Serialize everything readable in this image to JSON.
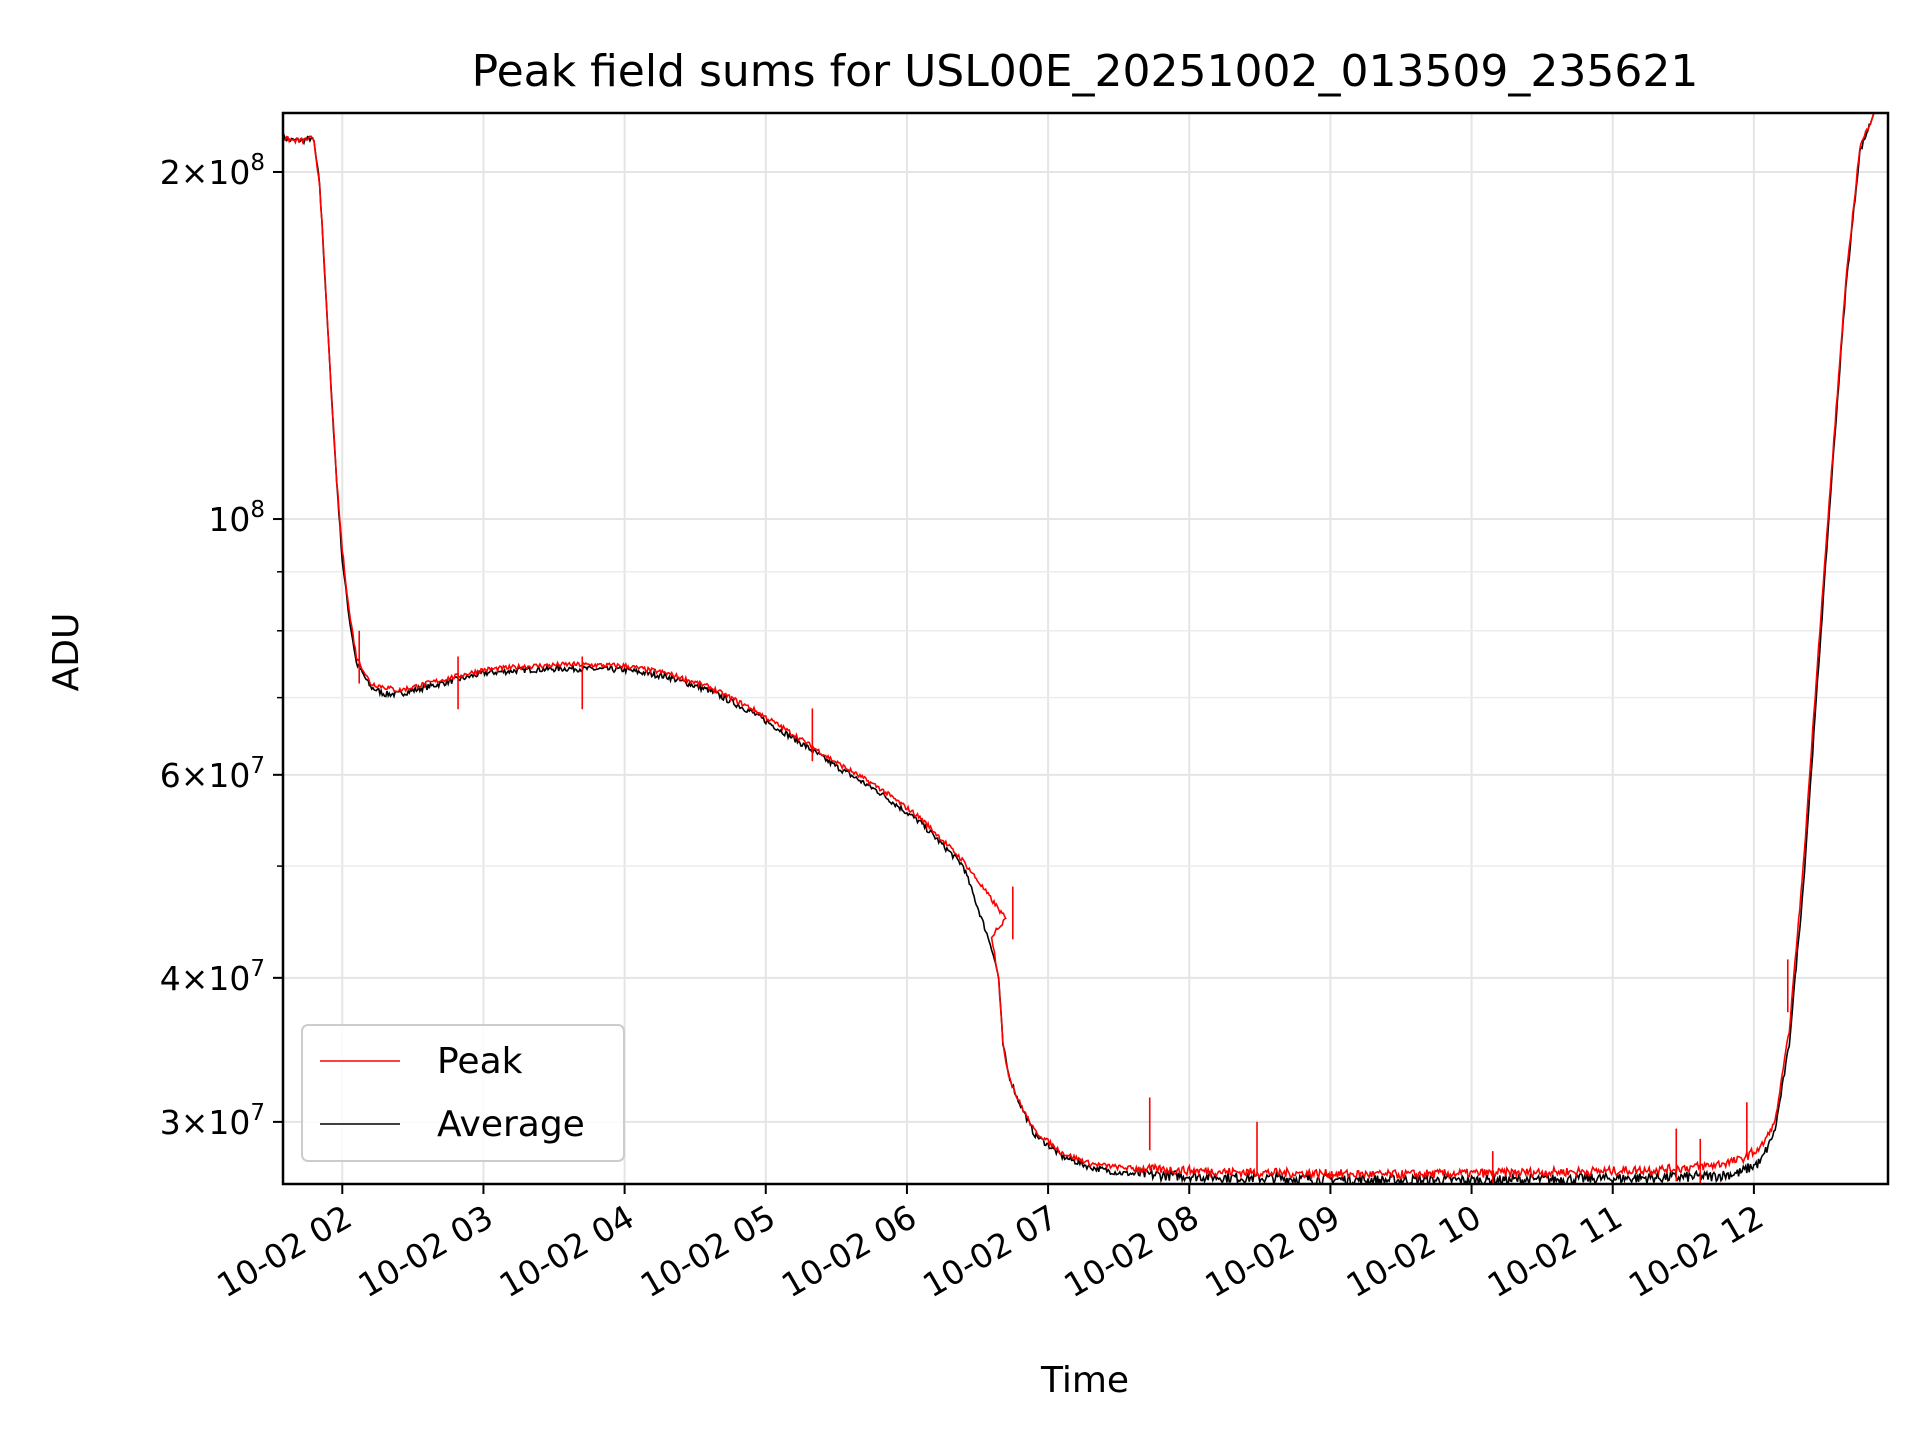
{
  "chart_data": {
    "type": "line",
    "title": "Peak field sums for USL00E_20251002_013509_235621",
    "xlabel": "Time",
    "ylabel": "ADU",
    "yscale": "log",
    "xlim": [
      1.58,
      12.95
    ],
    "ylim": [
      26500000,
      225000000
    ],
    "grid": true,
    "legend_position": "lower-left",
    "x_ticks": [
      {
        "value": 2,
        "label": "10-02 02"
      },
      {
        "value": 3,
        "label": "10-02 03"
      },
      {
        "value": 4,
        "label": "10-02 04"
      },
      {
        "value": 5,
        "label": "10-02 05"
      },
      {
        "value": 6,
        "label": "10-02 06"
      },
      {
        "value": 7,
        "label": "10-02 07"
      },
      {
        "value": 8,
        "label": "10-02 08"
      },
      {
        "value": 9,
        "label": "10-02 09"
      },
      {
        "value": 10,
        "label": "10-02 10"
      },
      {
        "value": 11,
        "label": "10-02 11"
      },
      {
        "value": 12,
        "label": "10-02 12"
      }
    ],
    "y_ticks": [
      {
        "value": 30000000,
        "mant": "3",
        "exp": "7"
      },
      {
        "value": 40000000,
        "mant": "4",
        "exp": "7"
      },
      {
        "value": 60000000,
        "mant": "6",
        "exp": "7"
      },
      {
        "value": 100000000,
        "mant": "",
        "exp": "8"
      },
      {
        "value": 200000000,
        "mant": "2",
        "exp": "8"
      }
    ],
    "y_minor": [
      50000000,
      70000000,
      80000000,
      90000000
    ],
    "series": [
      {
        "name": "Peak",
        "color": "#ff0000",
        "x": [
          1.58,
          1.65,
          1.72,
          1.78,
          1.8,
          1.84,
          1.88,
          1.92,
          1.96,
          2.0,
          2.05,
          2.1,
          2.2,
          2.3,
          2.4,
          2.5,
          2.6,
          2.8,
          3.0,
          3.3,
          3.6,
          4.0,
          4.3,
          4.6,
          4.9,
          5.2,
          5.5,
          5.8,
          6.1,
          6.4,
          6.7,
          6.6,
          6.62,
          6.65,
          6.68,
          6.72,
          6.78,
          6.9,
          7.1,
          7.3,
          7.5,
          7.7,
          7.9,
          8.1,
          8.3,
          8.6,
          9.0,
          9.4,
          9.8,
          10.2,
          10.6,
          11.0,
          11.4,
          11.7,
          11.9,
          12.05,
          12.15,
          12.25,
          12.35,
          12.45,
          12.55,
          12.65,
          12.75,
          12.85
        ],
        "values": [
          214000000,
          213000000,
          213000000,
          214000000,
          212000000,
          195000000,
          160000000,
          130000000,
          108000000,
          94000000,
          83000000,
          76000000,
          72000000,
          71500000,
          71000000,
          71500000,
          72000000,
          73000000,
          74000000,
          74500000,
          74800000,
          74600000,
          73500000,
          71500000,
          68500000,
          65000000,
          61500000,
          58500000,
          55000000,
          50500000,
          45000000,
          43500000,
          42000000,
          40000000,
          35000000,
          33000000,
          31500000,
          29500000,
          28200000,
          27600000,
          27400000,
          27300000,
          27250000,
          27200000,
          27150000,
          27100000,
          27050000,
          27000000,
          27050000,
          27100000,
          27150000,
          27200000,
          27300000,
          27500000,
          27800000,
          28500000,
          30000000,
          36000000,
          50000000,
          75000000,
          110000000,
          160000000,
          210000000,
          225000000
        ],
        "spikes": [
          {
            "x": 2.12,
            "value": 80000000
          },
          {
            "x": 2.82,
            "value": 76000000
          },
          {
            "x": 3.7,
            "value": 76000000
          },
          {
            "x": 5.33,
            "value": 68500000
          },
          {
            "x": 6.75,
            "value": 48000000
          },
          {
            "x": 7.72,
            "value": 31500000
          },
          {
            "x": 8.48,
            "value": 30000000
          },
          {
            "x": 10.15,
            "value": 28300000
          },
          {
            "x": 11.45,
            "value": 29600000
          },
          {
            "x": 11.62,
            "value": 29000000
          },
          {
            "x": 11.95,
            "value": 31200000
          },
          {
            "x": 12.24,
            "value": 41500000
          }
        ]
      },
      {
        "name": "Average",
        "color": "#000000",
        "x": [
          1.58,
          1.65,
          1.72,
          1.78,
          1.8,
          1.84,
          1.88,
          1.92,
          1.96,
          2.0,
          2.05,
          2.1,
          2.2,
          2.3,
          2.4,
          2.5,
          2.6,
          2.8,
          3.0,
          3.3,
          3.6,
          4.0,
          4.3,
          4.6,
          4.9,
          5.2,
          5.5,
          5.8,
          6.1,
          6.4,
          6.6,
          6.62,
          6.65,
          6.68,
          6.72,
          6.78,
          6.9,
          7.1,
          7.3,
          7.5,
          7.7,
          7.9,
          8.1,
          8.3,
          8.6,
          9.0,
          9.4,
          9.8,
          10.2,
          10.6,
          11.0,
          11.4,
          11.7,
          11.9,
          12.05,
          12.15,
          12.25,
          12.35,
          12.45,
          12.55,
          12.65,
          12.75,
          12.85
        ],
        "values": [
          214000000,
          213000000,
          213000000,
          214000000,
          212000000,
          195000000,
          160000000,
          130000000,
          108000000,
          92000000,
          82000000,
          75000000,
          71500000,
          70500000,
          70500000,
          71000000,
          71500000,
          72500000,
          73500000,
          74000000,
          74200000,
          74000000,
          73000000,
          71000000,
          68000000,
          64500000,
          61000000,
          58000000,
          54500000,
          50000000,
          42500000,
          41500000,
          40000000,
          35000000,
          33000000,
          31500000,
          29300000,
          28000000,
          27400000,
          27100000,
          27000000,
          26950000,
          26900000,
          26850000,
          26800000,
          26750000,
          26700000,
          26700000,
          26700000,
          26750000,
          26800000,
          26850000,
          26900000,
          27100000,
          27700000,
          29500000,
          35000000,
          48000000,
          72000000,
          108000000,
          158000000,
          208000000,
          225000000
        ]
      }
    ]
  }
}
